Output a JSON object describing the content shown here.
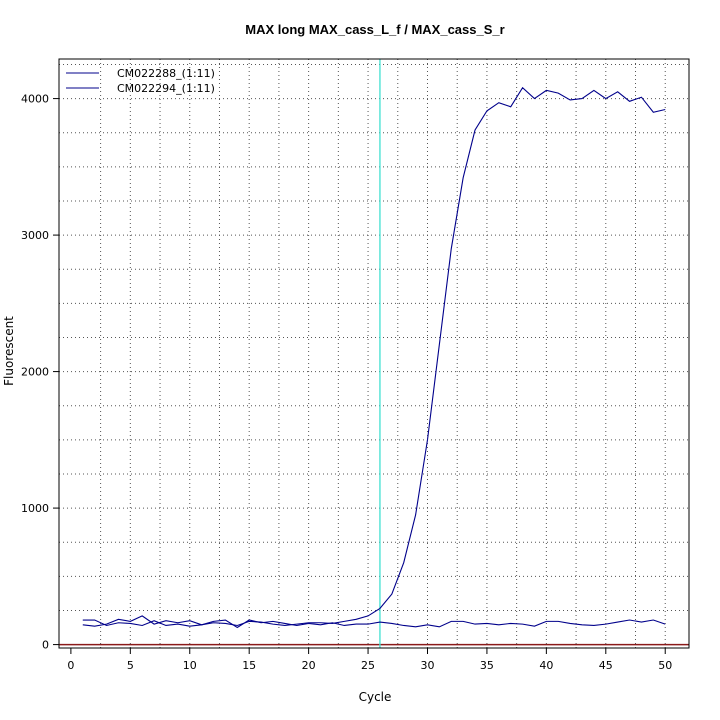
{
  "chart_data": {
    "type": "line",
    "title": "MAX long MAX_cass_L_f / MAX_cass_S_r",
    "xlabel": "Cycle",
    "ylabel": "Fluorescent",
    "xlim": [
      -1,
      52
    ],
    "ylim": [
      -25,
      4290
    ],
    "x_ticks": [
      0,
      5,
      10,
      15,
      20,
      25,
      30,
      35,
      40,
      45,
      50
    ],
    "y_ticks": [
      0,
      1000,
      2000,
      3000,
      4000
    ],
    "grid": true,
    "threshold_line": {
      "value": 0,
      "color": "#8b1a1a"
    },
    "cycle_marker": {
      "x": 26,
      "color": "#40e0d0"
    },
    "legend": {
      "placement": "top-left"
    },
    "series": [
      {
        "name": "CM022288_(1:11)",
        "color": "#00008b",
        "x": [
          1,
          2,
          3,
          4,
          5,
          6,
          7,
          8,
          9,
          10,
          11,
          12,
          13,
          14,
          15,
          16,
          17,
          18,
          19,
          20,
          21,
          22,
          23,
          24,
          25,
          26,
          27,
          28,
          29,
          30,
          31,
          32,
          33,
          34,
          35,
          36,
          37,
          38,
          39,
          40,
          41,
          42,
          43,
          44,
          45,
          46,
          47,
          48,
          49,
          50
        ],
        "values": [
          145,
          135,
          150,
          185,
          170,
          210,
          150,
          175,
          160,
          175,
          145,
          160,
          155,
          140,
          170,
          165,
          150,
          140,
          150,
          160,
          160,
          155,
          170,
          185,
          210,
          265,
          370,
          600,
          950,
          1500,
          2200,
          2900,
          3420,
          3770,
          3910,
          3970,
          3940,
          4080,
          4000,
          4060,
          4040,
          3990,
          4000,
          4060,
          4000,
          4050,
          3980,
          4010,
          3900,
          3920
        ]
      },
      {
        "name": "CM022294_(1:11)",
        "color": "#00008b",
        "x": [
          1,
          2,
          3,
          4,
          5,
          6,
          7,
          8,
          9,
          10,
          11,
          12,
          13,
          14,
          15,
          16,
          17,
          18,
          19,
          20,
          21,
          22,
          23,
          24,
          25,
          26,
          27,
          28,
          29,
          30,
          31,
          32,
          33,
          34,
          35,
          36,
          37,
          38,
          39,
          40,
          41,
          42,
          43,
          44,
          45,
          46,
          47,
          48,
          49,
          50
        ],
        "values": [
          180,
          180,
          140,
          160,
          155,
          140,
          175,
          140,
          150,
          135,
          145,
          170,
          180,
          125,
          180,
          160,
          170,
          155,
          140,
          155,
          145,
          160,
          140,
          150,
          150,
          165,
          155,
          140,
          130,
          145,
          130,
          170,
          170,
          150,
          155,
          145,
          155,
          150,
          135,
          170,
          170,
          155,
          145,
          140,
          150,
          165,
          180,
          165,
          180,
          150
        ]
      }
    ]
  }
}
